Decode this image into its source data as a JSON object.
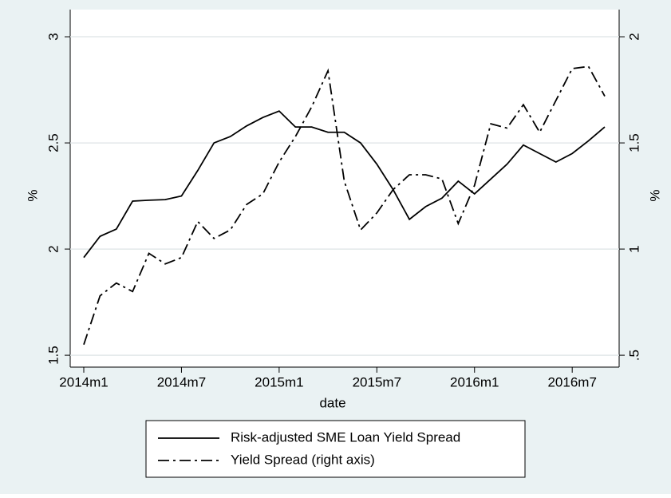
{
  "chart_data": {
    "type": "line",
    "categories": [
      "2014m1",
      null,
      null,
      null,
      null,
      null,
      "2014m7",
      null,
      null,
      null,
      null,
      null,
      "2015m1",
      null,
      null,
      null,
      null,
      null,
      "2015m7",
      null,
      null,
      null,
      null,
      null,
      "2016m1",
      null,
      null,
      null,
      null,
      null,
      "2016m7",
      null,
      null
    ],
    "xlabel": "date",
    "ylabel": "%",
    "y2label": "%",
    "series": [
      {
        "name": "Risk-adjusted SME Loan Yield Spread",
        "color": "#000000",
        "dash": "solid",
        "values": [
          1.96,
          2.06,
          2.094,
          2.226,
          2.23,
          2.233,
          2.25,
          2.37,
          2.5,
          2.53,
          2.58,
          2.62,
          2.65,
          2.575,
          2.575,
          2.55,
          2.55,
          2.5,
          2.4,
          2.28,
          2.14,
          2.2,
          2.24,
          2.32,
          2.26,
          2.33,
          2.4,
          2.49,
          2.45,
          2.41,
          2.45,
          2.51,
          2.575
        ]
      },
      {
        "name": "Yield Spread (right axis)",
        "color": "#000000",
        "dash": "dash-dot",
        "axis": "y2",
        "values": [
          0.55,
          0.78,
          0.84,
          0.8,
          0.98,
          0.93,
          0.96,
          1.13,
          1.05,
          1.09,
          1.21,
          1.26,
          1.41,
          1.53,
          1.67,
          1.84,
          1.32,
          1.09,
          1.17,
          1.28,
          1.35,
          1.35,
          1.33,
          1.12,
          1.3,
          1.59,
          1.57,
          1.68,
          1.55,
          1.7,
          1.85,
          1.86,
          1.72
        ]
      }
    ],
    "ylim": [
      1.444,
      3.128
    ],
    "yticks": [
      1.5,
      2,
      2.5,
      3
    ],
    "y2lim": [
      0.444,
      2.128
    ],
    "y2ticks": [
      {
        "value": 0.5,
        "label": ".5"
      },
      1,
      1.5,
      2
    ],
    "grid": true,
    "legend": "bottom"
  }
}
